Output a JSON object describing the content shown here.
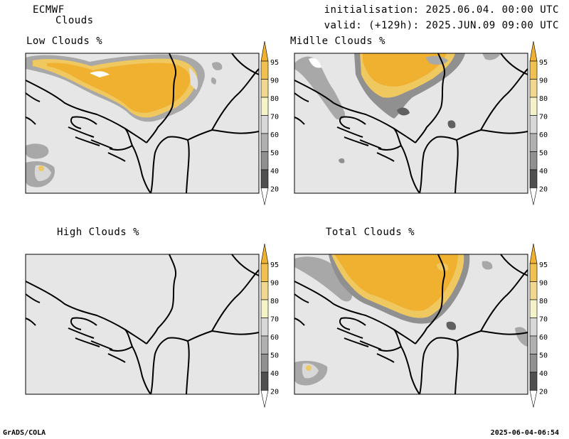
{
  "header": {
    "model": "ECMWF",
    "product": "Clouds",
    "init": "initialisation: 2025.06.04. 00:00 UTC",
    "valid": "valid: (+129h): 2025.JUN.09 09:00 UTC"
  },
  "panels": [
    {
      "title": "Low Clouds %"
    },
    {
      "title": "Midlle Clouds %"
    },
    {
      "title": "High Clouds %"
    },
    {
      "title": "Total Clouds %"
    }
  ],
  "legend": {
    "levels": [
      "95",
      "90",
      "80",
      "70",
      "60",
      "50",
      "40",
      "20"
    ],
    "colors": [
      "#f0b030",
      "#f0c050",
      "#f0d890",
      "#f4f4c8",
      "#d8d8d8",
      "#b0b0b0",
      "#909090",
      "#505050"
    ]
  },
  "footer": {
    "left": "GrADS/COLA",
    "right": "2025-06-04-06:54"
  },
  "colors": {
    "map_background": "#e6e6e6",
    "cloud_high": "#f0b030",
    "cloud_mid": "#f0c860",
    "cloud_edge": "#a8a8a8",
    "cloud_dark": "#606060"
  }
}
